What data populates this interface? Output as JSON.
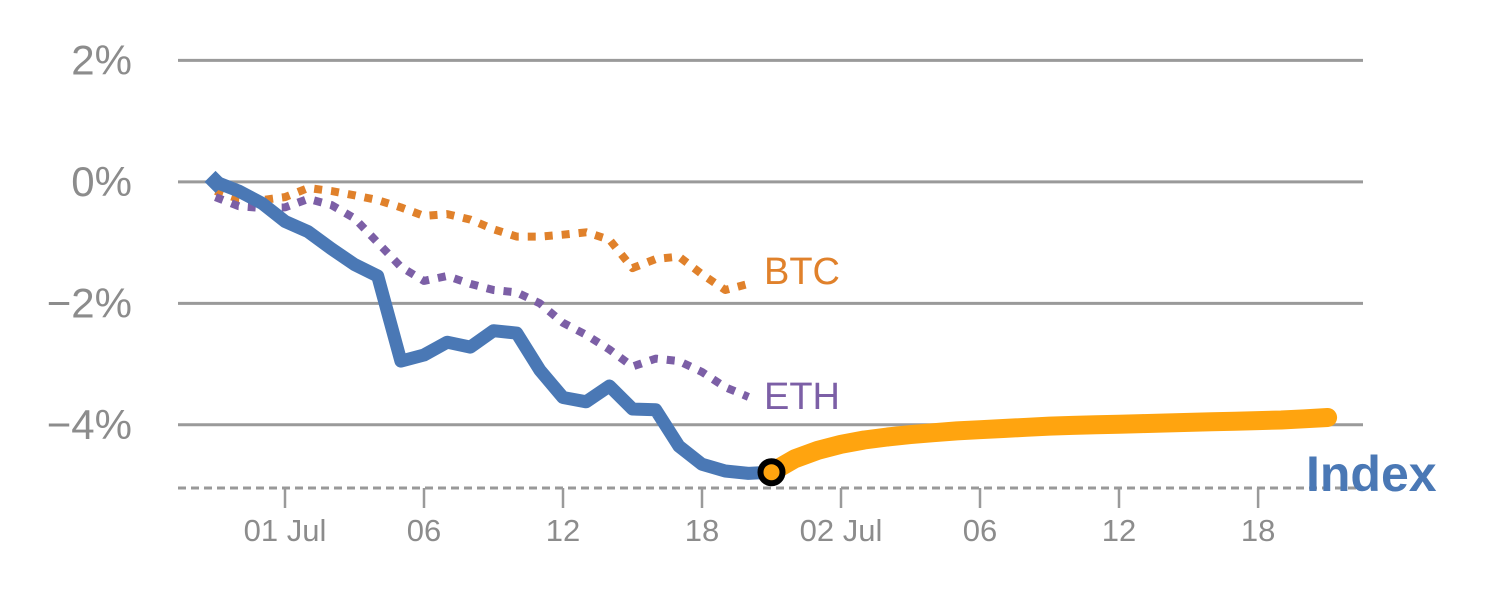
{
  "chart_data": {
    "type": "line",
    "title": "",
    "description_visible_elements_only": "Percent-change line chart: BTC and ETH dashed lines, Index solid line (blue actual, orange continuation after circled current point)",
    "x_axis": {
      "unit": "hours relative to 01 Jul 00:00",
      "range": [
        -4.62,
        46.53
      ],
      "ticks": [
        {
          "t": 0,
          "label": "01 Jul"
        },
        {
          "t": 6,
          "label": "06"
        },
        {
          "t": 12,
          "label": "12"
        },
        {
          "t": 18,
          "label": "18"
        },
        {
          "t": 24,
          "label": "02 Jul"
        },
        {
          "t": 30,
          "label": "06"
        },
        {
          "t": 36,
          "label": "12"
        },
        {
          "t": 42,
          "label": "18"
        }
      ]
    },
    "y_axis": {
      "unit": "%",
      "range": [
        -5.04,
        2.04
      ],
      "gridlines": [
        {
          "value": 2,
          "label": "2%"
        },
        {
          "value": 0,
          "label": "0%"
        },
        {
          "value": -2,
          "label": "−2%"
        },
        {
          "value": -4,
          "label": "−4%"
        }
      ]
    },
    "colors": {
      "btc": "#E0812B",
      "eth": "#7C5FA6",
      "index_actual": "#4A78B5",
      "index_projected": "#FFA40F",
      "grid": "#9A9A9A",
      "axis_dash": "#999999",
      "tick_text": "#8C8C8C",
      "marker_ring": "#000000"
    },
    "series": [
      {
        "name": "BTC",
        "style": "dashed",
        "color_key": "btc",
        "width": 8,
        "t": [
          -3,
          -2,
          -1,
          0,
          1,
          2,
          3,
          4,
          5,
          6,
          7,
          8,
          9,
          10,
          11,
          12,
          13,
          14,
          15,
          16,
          17,
          18,
          19,
          20
        ],
        "values": [
          -0.15,
          -0.28,
          -0.3,
          -0.25,
          -0.1,
          -0.15,
          -0.22,
          -0.3,
          -0.42,
          -0.56,
          -0.53,
          -0.62,
          -0.78,
          -0.9,
          -0.9,
          -0.87,
          -0.83,
          -0.95,
          -1.42,
          -1.27,
          -1.23,
          -1.52,
          -1.78,
          -1.68
        ]
      },
      {
        "name": "ETH",
        "style": "dashed",
        "color_key": "eth",
        "width": 8,
        "t": [
          -3,
          -2,
          -1,
          0,
          1,
          2,
          3,
          4,
          5,
          6,
          7,
          8,
          9,
          10,
          11,
          12,
          13,
          14,
          15,
          16,
          17,
          18,
          19,
          20
        ],
        "values": [
          -0.25,
          -0.4,
          -0.43,
          -0.42,
          -0.28,
          -0.38,
          -0.6,
          -1.0,
          -1.4,
          -1.63,
          -1.55,
          -1.68,
          -1.78,
          -1.82,
          -2.0,
          -2.32,
          -2.52,
          -2.76,
          -3.04,
          -2.91,
          -2.95,
          -3.13,
          -3.38,
          -3.54
        ]
      },
      {
        "name": "Index (actual)",
        "style": "solid",
        "color_key": "index_actual",
        "width": 13,
        "t": [
          -3,
          -2,
          -1,
          0,
          1,
          2,
          3,
          4,
          5,
          6,
          7,
          8,
          9,
          10,
          11,
          12,
          13,
          14,
          15,
          16,
          17,
          18,
          19,
          20,
          21
        ],
        "values": [
          0.0,
          -0.15,
          -0.35,
          -0.65,
          -0.82,
          -1.1,
          -1.36,
          -1.55,
          -2.95,
          -2.85,
          -2.64,
          -2.72,
          -2.45,
          -2.49,
          -3.1,
          -3.55,
          -3.62,
          -3.36,
          -3.74,
          -3.75,
          -4.35,
          -4.65,
          -4.76,
          -4.8,
          -4.78
        ]
      },
      {
        "name": "Index (projected)",
        "style": "solid",
        "color_key": "index_projected",
        "width": 19,
        "t": [
          21,
          22,
          23,
          24,
          25,
          26,
          27,
          28,
          29,
          30,
          31,
          32,
          33,
          34,
          35,
          36,
          37,
          38,
          39,
          40,
          41,
          42,
          43,
          44,
          45
        ],
        "values": [
          -4.78,
          -4.56,
          -4.42,
          -4.32,
          -4.25,
          -4.2,
          -4.16,
          -4.13,
          -4.1,
          -4.08,
          -4.06,
          -4.04,
          -4.02,
          -4.01,
          -4.0,
          -3.99,
          -3.98,
          -3.97,
          -3.96,
          -3.95,
          -3.94,
          -3.93,
          -3.92,
          -3.9,
          -3.88
        ]
      }
    ],
    "markers": [
      {
        "type": "diamond",
        "t": -3,
        "value": 0.0,
        "color_key": "index_actual",
        "size": 11
      },
      {
        "type": "circle",
        "t": 21,
        "value": -4.78,
        "fill_key": "index_projected",
        "ring_key": "marker_ring",
        "radius": 11,
        "ring_width": 6
      }
    ],
    "line_labels": [
      {
        "text": "BTC",
        "color_key": "btc"
      },
      {
        "text": "ETH",
        "color_key": "eth"
      },
      {
        "text": "Index",
        "color_key": "index_actual"
      }
    ],
    "legend": "inline end-of-line labels, no legend box"
  }
}
